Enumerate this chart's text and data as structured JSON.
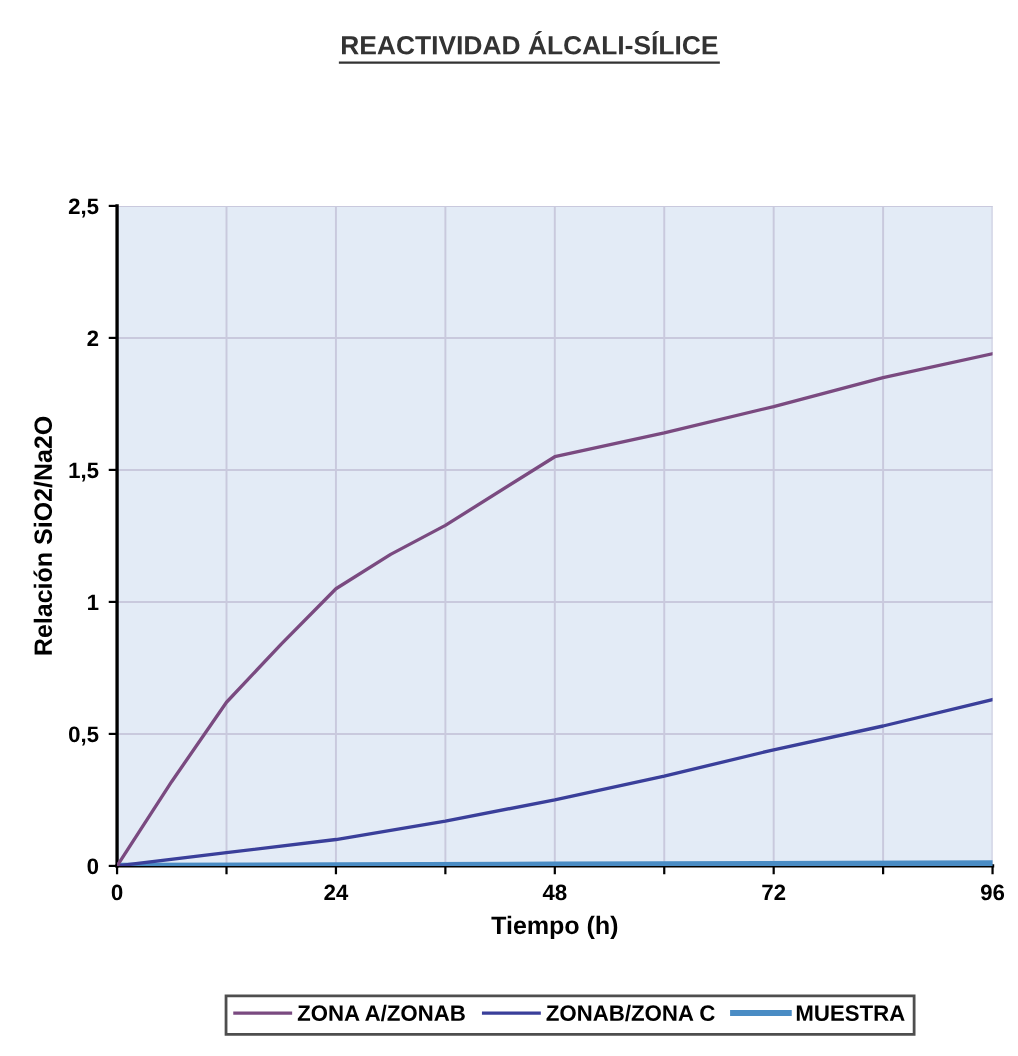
{
  "chart_data": {
    "type": "line",
    "title": "REACTIVIDAD ÁLCALI-SÍLICE",
    "xlabel": "Tiempo (h)",
    "ylabel": "Relación SiO2/Na2O",
    "xlim": [
      0,
      96
    ],
    "ylim": [
      0,
      2.5
    ],
    "xticks": [
      0,
      {
        "value": 12,
        "label": null
      },
      24,
      {
        "value": 36,
        "label": null
      },
      48,
      {
        "value": 60,
        "label": null
      },
      72,
      {
        "value": 84,
        "label": null
      },
      96
    ],
    "yticks": [
      0,
      {
        "value": 0.5,
        "label": "0,5"
      },
      1,
      {
        "value": 1.5,
        "label": "1,5"
      },
      2,
      {
        "value": 2.5,
        "label": "2,5"
      }
    ],
    "grid": true,
    "legend": "bottom",
    "marker": "none",
    "line_style": "solid",
    "series": [
      {
        "name": "ZONA A/ZONAB",
        "color": "#7a4a80",
        "x": [
          0,
          6,
          12,
          18,
          24,
          30,
          36,
          48,
          60,
          72,
          84,
          96
        ],
        "values": [
          0,
          0.32,
          0.62,
          0.84,
          1.05,
          1.18,
          1.29,
          1.55,
          1.64,
          1.74,
          1.85,
          1.94
        ]
      },
      {
        "name": "ZONAB/ZONA C",
        "color": "#3a3f9a",
        "x": [
          0,
          12,
          24,
          36,
          48,
          60,
          72,
          84,
          96
        ],
        "values": [
          0,
          0.05,
          0.1,
          0.17,
          0.25,
          0.34,
          0.44,
          0.53,
          0.63
        ]
      },
      {
        "name": "MUESTRA",
        "color": "#4a8cc4",
        "x": [
          0,
          48,
          96
        ],
        "values": [
          0,
          0.005,
          0.01
        ]
      }
    ]
  }
}
